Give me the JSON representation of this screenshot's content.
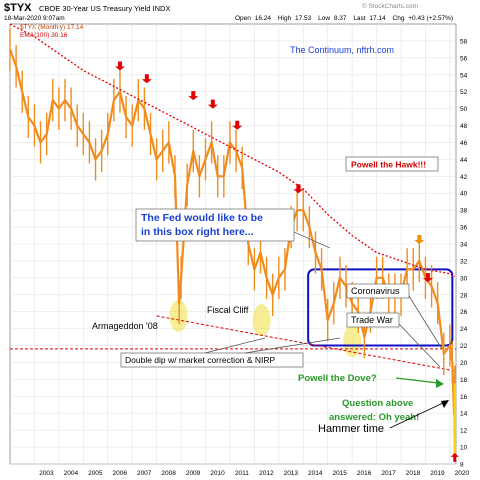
{
  "header": {
    "symbol": "$TYX",
    "description": "CBOE 30-Year US Treasury Yield INDX",
    "date": "18-Mar-2020 9:07am",
    "watermark": "© StockCharts.com",
    "ohlc": {
      "open_label": "Open",
      "open": "16.24",
      "high_label": "High",
      "high": "17.53",
      "low_label": "Low",
      "low": "8.37",
      "last_label": "Last",
      "last": "17.14",
      "chg_label": "Chg",
      "chg": "+0.43 (+2.57%)"
    },
    "legend_price": "$TYX (Monthly) 17.14",
    "legend_ema": "EMA(100) 30.16"
  },
  "colors": {
    "price": "#f08c1e",
    "ema": "#e00000",
    "trendline": "#e00000",
    "box": "#1010c8",
    "highlight": "#f0e040",
    "arrow_red": "#e00000",
    "arrow_orange": "#f09000",
    "arrow_green": "#2a9a2a",
    "text_blue": "#1a3fd0",
    "text_green": "#2a9a2a",
    "text_red": "#d00000",
    "grid": "#e4e4e4",
    "hammer": "#ffd000"
  },
  "chart_data": {
    "type": "line",
    "x_start": 2002.0,
    "x_end": 2020.25,
    "ylim": [
      8,
      60
    ],
    "y_ticks": [
      8,
      10,
      12,
      14,
      16,
      18,
      20,
      22,
      24,
      26,
      28,
      30,
      32,
      34,
      36,
      38,
      40,
      42,
      44,
      46,
      48,
      50,
      52,
      54,
      56,
      58
    ],
    "x_ticks": [
      "2003",
      "2004",
      "2005",
      "2006",
      "2007",
      "2008",
      "2009",
      "2010",
      "2011",
      "2012",
      "2013",
      "2014",
      "2015",
      "2016",
      "2017",
      "2018",
      "2019",
      "2020"
    ],
    "grid": true,
    "series": [
      {
        "name": "$TYX (Monthly)",
        "x": [
          2002.0,
          2002.25,
          2002.5,
          2002.75,
          2003.0,
          2003.25,
          2003.5,
          2003.75,
          2004.0,
          2004.25,
          2004.5,
          2004.75,
          2005.0,
          2005.25,
          2005.5,
          2005.75,
          2006.0,
          2006.25,
          2006.5,
          2006.75,
          2007.0,
          2007.25,
          2007.5,
          2007.75,
          2008.0,
          2008.25,
          2008.5,
          2008.75,
          2008.92,
          2009.0,
          2009.25,
          2009.5,
          2009.75,
          2010.0,
          2010.25,
          2010.5,
          2010.75,
          2011.0,
          2011.25,
          2011.5,
          2011.75,
          2012.0,
          2012.25,
          2012.5,
          2012.75,
          2013.0,
          2013.25,
          2013.5,
          2013.75,
          2014.0,
          2014.25,
          2014.5,
          2014.75,
          2015.0,
          2015.25,
          2015.5,
          2015.75,
          2016.0,
          2016.25,
          2016.5,
          2016.75,
          2017.0,
          2017.25,
          2017.5,
          2017.75,
          2018.0,
          2018.25,
          2018.5,
          2018.75,
          2019.0,
          2019.25,
          2019.5,
          2019.75,
          2020.0,
          2020.1,
          2020.17,
          2020.2
        ],
        "values": [
          57,
          55,
          52,
          49,
          48,
          46,
          47,
          51,
          50,
          51,
          50,
          48,
          47,
          46,
          44,
          45,
          47,
          51,
          52,
          49,
          48,
          51,
          50,
          47,
          44,
          45,
          46,
          42,
          27,
          30,
          41,
          45,
          42,
          44,
          46,
          42,
          42,
          46,
          45,
          43,
          34,
          31,
          33,
          30,
          28,
          30,
          31,
          36,
          38,
          38,
          36,
          33,
          31,
          25,
          27,
          30,
          29,
          27,
          26,
          23,
          26,
          30,
          30,
          28,
          28,
          28,
          31,
          31,
          32,
          30,
          29,
          27,
          21,
          22,
          20,
          14,
          17.14
        ]
      },
      {
        "name": "EMA(100)",
        "x": [
          2002.0,
          2003.0,
          2004.0,
          2005.0,
          2006.0,
          2007.0,
          2008.0,
          2009.0,
          2010.0,
          2011.0,
          2012.0,
          2013.0,
          2014.0,
          2015.0,
          2016.0,
          2017.0,
          2018.0,
          2019.0,
          2020.0,
          2020.2
        ],
        "values": [
          60,
          58.5,
          56.5,
          54.5,
          53,
          51.5,
          50,
          48.5,
          47,
          45.5,
          44,
          42.5,
          40.5,
          37.5,
          35,
          33,
          32,
          31,
          30.5,
          30.16
        ]
      }
    ],
    "trendline": {
      "x": [
        2008.0,
        2020.2
      ],
      "values": [
        25.5,
        19
      ]
    },
    "ema_line": {
      "values": [
        21.6
      ]
    },
    "box": {
      "x": [
        2014.2,
        2020.1
      ],
      "values": [
        22,
        31
      ]
    },
    "highlights": [
      {
        "x": 2008.9,
        "y": 25.5
      },
      {
        "x": 2012.3,
        "y": 25
      },
      {
        "x": 2016.0,
        "y": 22.5
      }
    ],
    "red_arrows": [
      {
        "x": 2006.5,
        "y": 54.5
      },
      {
        "x": 2007.6,
        "y": 53
      },
      {
        "x": 2009.5,
        "y": 51
      },
      {
        "x": 2010.3,
        "y": 50
      },
      {
        "x": 2011.3,
        "y": 47.5
      },
      {
        "x": 2013.8,
        "y": 40
      },
      {
        "x": 2019.1,
        "y": 29.5
      }
    ],
    "orange_arrow": {
      "x": 2018.75,
      "y": 34
    },
    "annotations": {
      "continuum": "The Continuum, nftrh.com",
      "hawk": "Powell the Hawk!!!",
      "fed_box_line1": "The Fed would like to be",
      "fed_box_line2": "in this box right here...",
      "armageddon": "Armageddon '08",
      "fiscal_cliff": "Fiscal Cliff",
      "coronavirus": "Coronavirus",
      "trade_war": "Trade War",
      "double_dip": "Double dip w/ market correction & NIRP",
      "dove": "Powell the Dove?",
      "question_line1": "Question above",
      "question_line2": "answered: Oh yeah!",
      "hammer": "Hammer time"
    }
  }
}
